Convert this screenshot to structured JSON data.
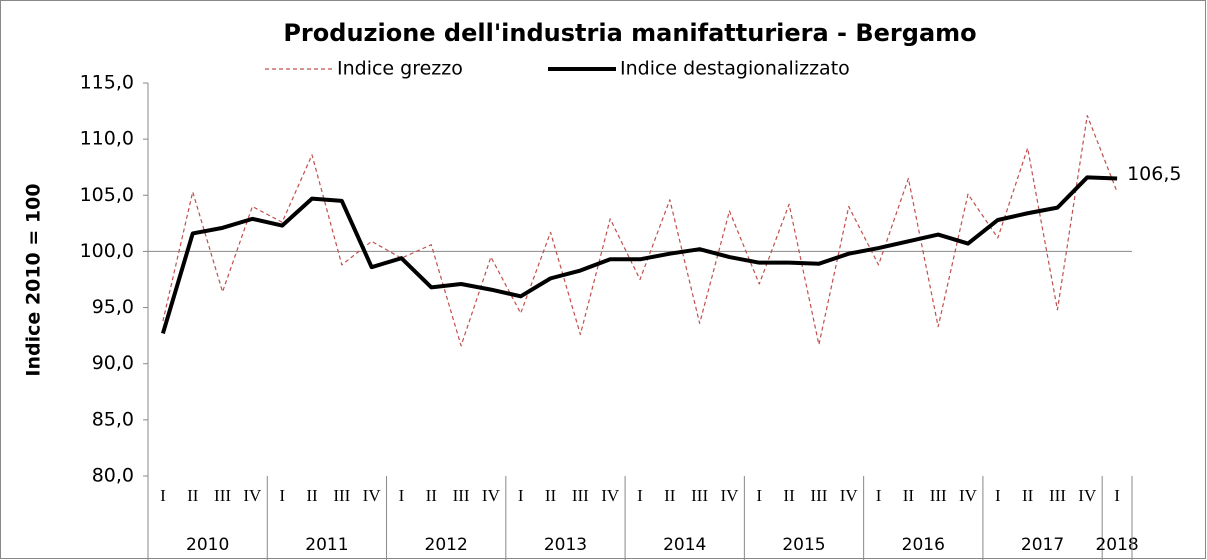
{
  "chart_data": {
    "type": "line",
    "title": "Produzione dell'industria  manifatturiera - Bergamo",
    "y_label": "Indice  2010 = 100",
    "categories": [
      "I",
      "II",
      "III",
      "IV",
      "I",
      "II",
      "III",
      "IV",
      "I",
      "II",
      "III",
      "IV",
      "I",
      "II",
      "III",
      "IV",
      "I",
      "II",
      "III",
      "IV",
      "I",
      "II",
      "III",
      "IV",
      "I",
      "II",
      "III",
      "IV",
      "I",
      "II",
      "III",
      "IV",
      "I"
    ],
    "category_groups": [
      {
        "label": "2010",
        "categories": 4
      },
      {
        "label": "2011",
        "categories": 4
      },
      {
        "label": "2012",
        "categories": 4
      },
      {
        "label": "2013",
        "categories": 4
      },
      {
        "label": "2014",
        "categories": 4
      },
      {
        "label": "2015",
        "categories": 4
      },
      {
        "label": "2016",
        "categories": 4
      },
      {
        "label": "2017",
        "categories": 4
      },
      {
        "label": "2018",
        "categories": 1
      }
    ],
    "series": [
      {
        "name": "Indice grezzo",
        "color": "#c0504d",
        "dashed": true,
        "values": [
          93.8,
          105.3,
          96.4,
          104.0,
          102.6,
          108.6,
          98.8,
          100.9,
          99.4,
          100.6,
          91.6,
          99.5,
          94.5,
          101.7,
          92.6,
          102.9,
          97.5,
          104.6,
          93.6,
          103.6,
          97.1,
          104.2,
          91.7,
          104.0,
          98.8,
          106.5,
          93.3,
          105.1,
          101.2,
          109.2,
          94.8,
          112.1,
          105.3
        ]
      },
      {
        "name": "Indice  destagionalizzato",
        "color": "#000000",
        "dashed": false,
        "values": [
          92.7,
          101.6,
          102.1,
          102.9,
          102.3,
          104.7,
          104.5,
          98.6,
          99.4,
          96.8,
          97.1,
          96.6,
          96.0,
          97.6,
          98.3,
          99.3,
          99.3,
          99.8,
          100.2,
          99.5,
          99.0,
          99.0,
          98.9,
          99.8,
          100.3,
          100.9,
          101.5,
          100.7,
          102.8,
          103.4,
          103.9,
          106.6,
          106.5
        ],
        "value_labels": [
          null,
          null,
          null,
          null,
          null,
          null,
          null,
          null,
          null,
          null,
          null,
          null,
          null,
          null,
          null,
          null,
          null,
          null,
          null,
          null,
          null,
          null,
          null,
          null,
          null,
          null,
          null,
          null,
          null,
          null,
          null,
          null,
          "106,5"
        ]
      }
    ],
    "ylim": [
      80,
      115
    ],
    "yticks": [
      {
        "value": 80,
        "label": "80,0"
      },
      {
        "value": 85,
        "label": "85,0"
      },
      {
        "value": 90,
        "label": "90,0"
      },
      {
        "value": 95,
        "label": "95,0"
      },
      {
        "value": 100,
        "label": "100,0"
      },
      {
        "value": 105,
        "label": "105,0"
      },
      {
        "value": 110,
        "label": "110,0"
      },
      {
        "value": 115,
        "label": "115,0"
      }
    ],
    "axis_crossing": 100,
    "grid": false,
    "legend": "top"
  }
}
